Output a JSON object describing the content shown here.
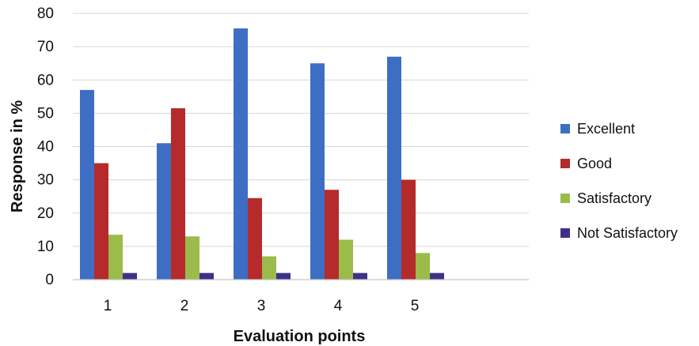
{
  "chart_data": {
    "type": "bar",
    "title": "",
    "xlabel": "Evaluation points",
    "ylabel": "Response in %",
    "categories": [
      "1",
      "2",
      "3",
      "4",
      "5"
    ],
    "ylim": [
      0,
      80
    ],
    "yticks": [
      0,
      10,
      20,
      30,
      40,
      50,
      60,
      70,
      80
    ],
    "grid": true,
    "legend_position": "right",
    "series": [
      {
        "name": "Excellent",
        "color": "#3d6ec4",
        "values": [
          57,
          41,
          75.5,
          65,
          67
        ]
      },
      {
        "name": "Good",
        "color": "#b52a2a",
        "values": [
          35,
          51.5,
          24.5,
          27,
          30
        ]
      },
      {
        "name": "Satisfactory",
        "color": "#9bbb4a",
        "values": [
          13.5,
          13,
          7,
          12,
          8
        ]
      },
      {
        "name": "Not Satisfactory",
        "color": "#3c3288",
        "values": [
          2,
          2,
          2,
          2,
          2
        ]
      }
    ]
  }
}
